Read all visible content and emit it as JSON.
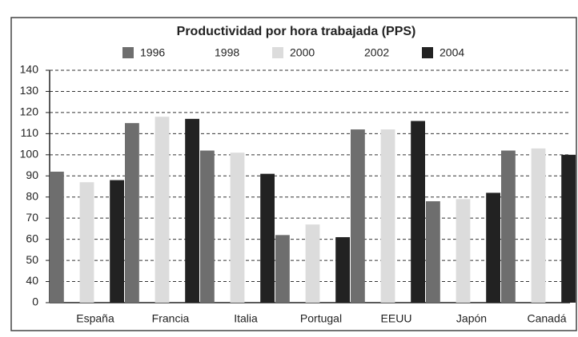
{
  "chart_data": {
    "type": "bar",
    "title": "Productividad por hora trabajada (PPS)",
    "categories": [
      "España",
      "Francia",
      "Italia",
      "Portugal",
      "EEUU",
      "Japón",
      "Canadá"
    ],
    "series": [
      {
        "name": "1996",
        "color": "#6e6e6e",
        "values": [
          92,
          115,
          102,
          62,
          112,
          78,
          102
        ]
      },
      {
        "name": "1998",
        "color": "#ffffff",
        "values": [
          null,
          null,
          null,
          null,
          null,
          null,
          null
        ]
      },
      {
        "name": "2000",
        "color": "#dcdcdc",
        "values": [
          87,
          118,
          101,
          67,
          112,
          79,
          103
        ]
      },
      {
        "name": "2002",
        "color": "#ffffff",
        "values": [
          null,
          null,
          null,
          null,
          null,
          null,
          null
        ]
      },
      {
        "name": "2004",
        "color": "#222222",
        "values": [
          88,
          117,
          91,
          61,
          116,
          82,
          100
        ]
      }
    ],
    "ylim": [
      0,
      140
    ],
    "yticks": [
      0,
      40,
      50,
      60,
      70,
      80,
      90,
      100,
      110,
      120,
      130,
      140
    ],
    "grid": true
  }
}
